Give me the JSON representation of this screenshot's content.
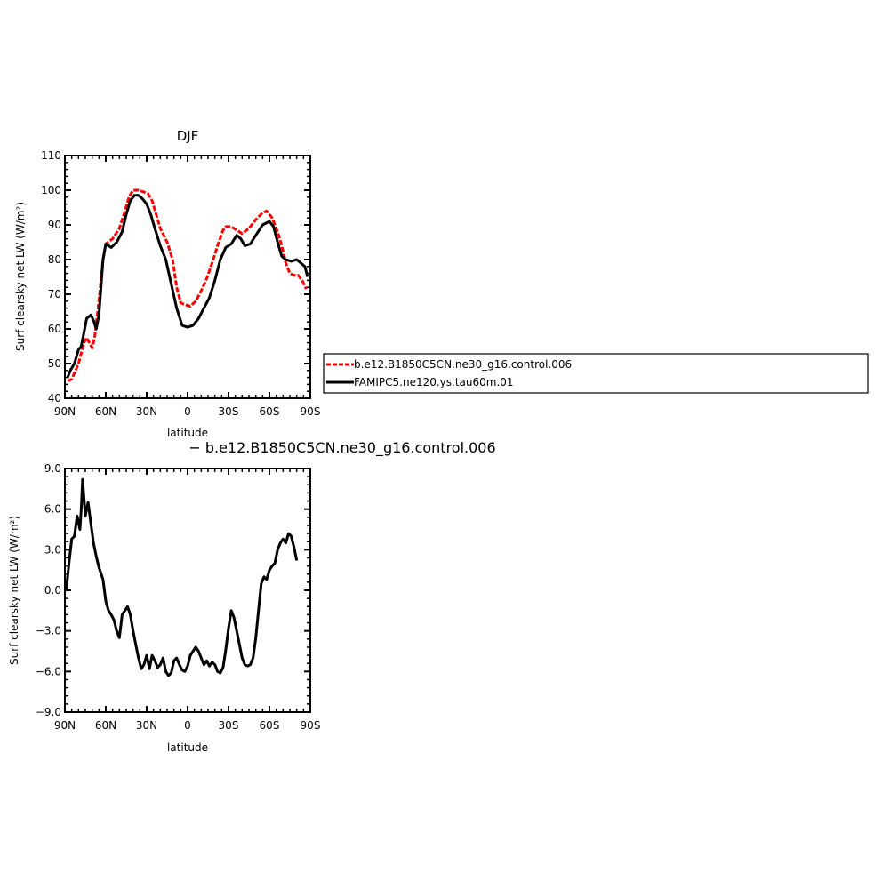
{
  "chart_data": [
    {
      "type": "line",
      "title": "DJF",
      "xlabel": "latitude",
      "ylabel": "Surf clearsky net LW (W/m²)",
      "xlim": [
        -90,
        90
      ],
      "ylim": [
        40,
        110
      ],
      "x_ticks": [
        -90,
        -60,
        -30,
        0,
        30,
        60,
        90
      ],
      "x_tick_labels": [
        "90N",
        "60N",
        "30N",
        "0",
        "30S",
        "60S",
        "90S"
      ],
      "y_ticks": [
        40,
        50,
        60,
        70,
        80,
        90,
        100,
        110
      ],
      "y_tick_labels": [
        "40",
        "50",
        "60",
        "70",
        "80",
        "90",
        "100",
        "110"
      ],
      "legend_position": "right",
      "series": [
        {
          "name": "b.e12.B1850C5CN.ne30_g16.control.006",
          "color": "#ff0000",
          "style": "dashed",
          "points": [
            [
              -88,
              45
            ],
            [
              -85,
              45.5
            ],
            [
              -80,
              50
            ],
            [
              -76,
              56
            ],
            [
              -74,
              57.5
            ],
            [
              -72,
              56
            ],
            [
              -70,
              54.5
            ],
            [
              -68,
              58
            ],
            [
              -65,
              68
            ],
            [
              -62,
              80
            ],
            [
              -60,
              84.5
            ],
            [
              -55,
              86
            ],
            [
              -50,
              89
            ],
            [
              -46,
              94
            ],
            [
              -43,
              98
            ],
            [
              -40,
              100
            ],
            [
              -36,
              100
            ],
            [
              -32,
              99.5
            ],
            [
              -29,
              99
            ],
            [
              -26,
              97
            ],
            [
              -23,
              93
            ],
            [
              -20,
              89
            ],
            [
              -15,
              85
            ],
            [
              -11,
              80
            ],
            [
              -8,
              72
            ],
            [
              -5,
              67.5
            ],
            [
              -2,
              67
            ],
            [
              2,
              66.5
            ],
            [
              6,
              68
            ],
            [
              10,
              71
            ],
            [
              14,
              74.5
            ],
            [
              18,
              79
            ],
            [
              22,
              84
            ],
            [
              26,
              88.5
            ],
            [
              28,
              89.5
            ],
            [
              32,
              89.5
            ],
            [
              36,
              88.5
            ],
            [
              40,
              87.5
            ],
            [
              45,
              89
            ],
            [
              50,
              91.5
            ],
            [
              55,
              93.5
            ],
            [
              58,
              94
            ],
            [
              62,
              92
            ],
            [
              66,
              88
            ],
            [
              69,
              84
            ],
            [
              72,
              79
            ],
            [
              75,
              76
            ],
            [
              78,
              75.5
            ],
            [
              81,
              75.5
            ],
            [
              84,
              74
            ],
            [
              87,
              71.5
            ]
          ]
        },
        {
          "name": "FAMIPC5.ne120.ys.tau60m.01",
          "color": "#000000",
          "style": "solid",
          "points": [
            [
              -88,
              46
            ],
            [
              -86,
              48
            ],
            [
              -83,
              50
            ],
            [
              -80,
              54
            ],
            [
              -78,
              55
            ],
            [
              -76,
              59
            ],
            [
              -74,
              63
            ],
            [
              -71,
              64
            ],
            [
              -69,
              62.5
            ],
            [
              -67,
              60
            ],
            [
              -65,
              64
            ],
            [
              -62,
              80
            ],
            [
              -60,
              84.5
            ],
            [
              -56,
              83.5
            ],
            [
              -52,
              85
            ],
            [
              -48,
              88
            ],
            [
              -45,
              93
            ],
            [
              -42,
              97
            ],
            [
              -39,
              98.5
            ],
            [
              -36,
              98.5
            ],
            [
              -33,
              97.5
            ],
            [
              -30,
              96
            ],
            [
              -27,
              93
            ],
            [
              -24,
              89
            ],
            [
              -20,
              84
            ],
            [
              -16,
              80
            ],
            [
              -12,
              73
            ],
            [
              -8,
              66
            ],
            [
              -4,
              61
            ],
            [
              0,
              60.5
            ],
            [
              4,
              61
            ],
            [
              8,
              63
            ],
            [
              12,
              66
            ],
            [
              16,
              69
            ],
            [
              20,
              74
            ],
            [
              24,
              80
            ],
            [
              28,
              83.5
            ],
            [
              32,
              84.5
            ],
            [
              36,
              87
            ],
            [
              39,
              86
            ],
            [
              42,
              84
            ],
            [
              46,
              84.5
            ],
            [
              50,
              87
            ],
            [
              55,
              90
            ],
            [
              60,
              91
            ],
            [
              63,
              89.5
            ],
            [
              66,
              85
            ],
            [
              69,
              81
            ],
            [
              72,
              80
            ],
            [
              76,
              79.5
            ],
            [
              80,
              80
            ],
            [
              83,
              79
            ],
            [
              86,
              78
            ],
            [
              88,
              75
            ]
          ]
        }
      ]
    },
    {
      "type": "line",
      "title": "− b.e12.B1850C5CN.ne30_g16.control.006",
      "xlabel": "latitude",
      "ylabel": "Surf clearsky net LW (W/m²)",
      "xlim": [
        -90,
        90
      ],
      "ylim": [
        -9,
        9
      ],
      "x_ticks": [
        -90,
        -60,
        -30,
        0,
        30,
        60,
        90
      ],
      "x_tick_labels": [
        "90N",
        "60N",
        "30N",
        "0",
        "30S",
        "60S",
        "90S"
      ],
      "y_ticks": [
        -9,
        -6,
        -3,
        0,
        3,
        6,
        9
      ],
      "y_tick_labels": [
        "−9.0",
        "−6.0",
        "−3.0",
        "0.0",
        "3.0",
        "6.0",
        "9.0"
      ],
      "series": [
        {
          "name": "",
          "color": "#000000",
          "style": "solid",
          "points": [
            [
              -89,
              0
            ],
            [
              -87,
              2
            ],
            [
              -85,
              3.8
            ],
            [
              -83,
              4
            ],
            [
              -81,
              5.5
            ],
            [
              -79,
              4.5
            ],
            [
              -78,
              6
            ],
            [
              -77,
              8.2
            ],
            [
              -75,
              5.5
            ],
            [
              -73,
              6.5
            ],
            [
              -71,
              5
            ],
            [
              -69,
              3.5
            ],
            [
              -67,
              2.5
            ],
            [
              -65,
              1.7
            ],
            [
              -62,
              0.8
            ],
            [
              -60,
              -0.8
            ],
            [
              -58,
              -1.5
            ],
            [
              -56,
              -1.8
            ],
            [
              -54,
              -2.2
            ],
            [
              -52,
              -3
            ],
            [
              -50,
              -3.5
            ],
            [
              -48,
              -1.8
            ],
            [
              -46,
              -1.5
            ],
            [
              -44,
              -1.2
            ],
            [
              -42,
              -1.8
            ],
            [
              -40,
              -3
            ],
            [
              -38,
              -4
            ],
            [
              -36,
              -5
            ],
            [
              -34,
              -5.8
            ],
            [
              -32,
              -5.5
            ],
            [
              -30,
              -4.8
            ],
            [
              -28,
              -5.8
            ],
            [
              -26,
              -4.8
            ],
            [
              -24,
              -5.2
            ],
            [
              -22,
              -5.7
            ],
            [
              -20,
              -5.5
            ],
            [
              -18,
              -5
            ],
            [
              -16,
              -6
            ],
            [
              -14,
              -6.3
            ],
            [
              -12,
              -6.1
            ],
            [
              -10,
              -5.2
            ],
            [
              -8,
              -5
            ],
            [
              -6,
              -5.5
            ],
            [
              -4,
              -5.9
            ],
            [
              -2,
              -6
            ],
            [
              0,
              -5.6
            ],
            [
              2,
              -4.8
            ],
            [
              4,
              -4.5
            ],
            [
              6,
              -4.2
            ],
            [
              8,
              -4.5
            ],
            [
              10,
              -5
            ],
            [
              12,
              -5.5
            ],
            [
              14,
              -5.2
            ],
            [
              16,
              -5.6
            ],
            [
              18,
              -5.3
            ],
            [
              20,
              -5.5
            ],
            [
              22,
              -6
            ],
            [
              24,
              -6.1
            ],
            [
              26,
              -5.7
            ],
            [
              28,
              -4.4
            ],
            [
              30,
              -2.8
            ],
            [
              32,
              -1.5
            ],
            [
              34,
              -2
            ],
            [
              36,
              -3
            ],
            [
              38,
              -4
            ],
            [
              40,
              -5
            ],
            [
              42,
              -5.5
            ],
            [
              44,
              -5.6
            ],
            [
              46,
              -5.5
            ],
            [
              48,
              -5
            ],
            [
              50,
              -3.5
            ],
            [
              52,
              -1.5
            ],
            [
              54,
              0.5
            ],
            [
              56,
              1
            ],
            [
              58,
              0.8
            ],
            [
              60,
              1.5
            ],
            [
              62,
              1.8
            ],
            [
              64,
              2
            ],
            [
              66,
              3
            ],
            [
              68,
              3.5
            ],
            [
              70,
              3.8
            ],
            [
              72,
              3.5
            ],
            [
              74,
              4.2
            ],
            [
              76,
              4
            ],
            [
              78,
              3.2
            ],
            [
              80,
              2.2
            ]
          ]
        }
      ]
    }
  ]
}
